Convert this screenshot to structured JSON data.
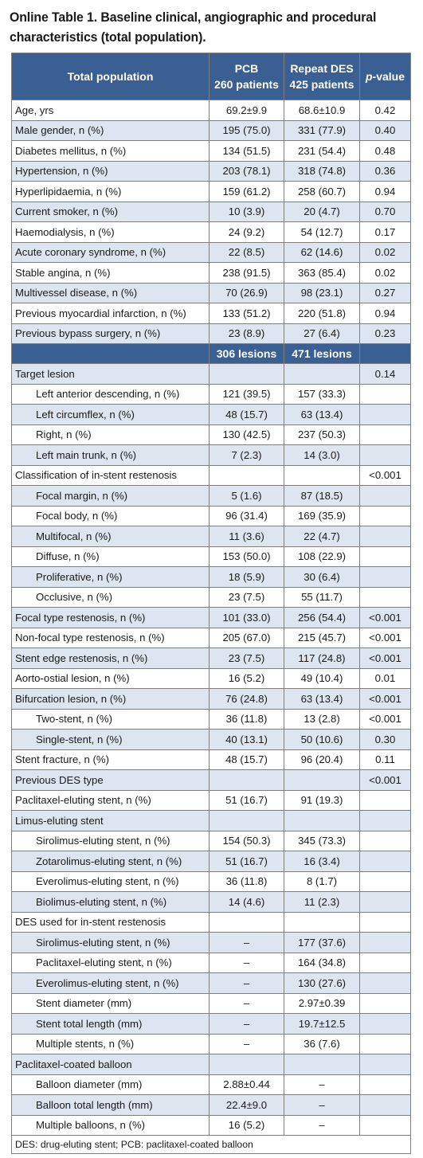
{
  "title": "Online Table 1. Baseline clinical, angiographic and procedural characteristics (total population).",
  "header": {
    "col1": "Total population",
    "col2_line1": "PCB",
    "col2_line2": "260 patients",
    "col3_line1": "Repeat DES",
    "col3_line2": "425 patients",
    "col4_p": "p",
    "col4_rest": "-value"
  },
  "subheader": {
    "col2": "306 lesions",
    "col3": "471 lesions"
  },
  "patient_rows": [
    {
      "label": "Age, yrs",
      "pcb": "69.2±9.9",
      "des": "68.6±10.9",
      "p": "0.42",
      "indent": false,
      "shade": false
    },
    {
      "label": "Male gender, n (%)",
      "pcb": "195 (75.0)",
      "des": "331 (77.9)",
      "p": "0.40",
      "indent": false,
      "shade": true
    },
    {
      "label": "Diabetes mellitus, n (%)",
      "pcb": "134 (51.5)",
      "des": "231 (54.4)",
      "p": "0.48",
      "indent": false,
      "shade": false
    },
    {
      "label": "Hypertension, n (%)",
      "pcb": "203 (78.1)",
      "des": "318 (74.8)",
      "p": "0.36",
      "indent": false,
      "shade": true
    },
    {
      "label": "Hyperlipidaemia, n (%)",
      "pcb": "159 (61.2)",
      "des": "258 (60.7)",
      "p": "0.94",
      "indent": false,
      "shade": false
    },
    {
      "label": "Current smoker, n (%)",
      "pcb": "10 (3.9)",
      "des": "20 (4.7)",
      "p": "0.70",
      "indent": false,
      "shade": true
    },
    {
      "label": "Haemodialysis, n (%)",
      "pcb": "24 (9.2)",
      "des": "54 (12.7)",
      "p": "0.17",
      "indent": false,
      "shade": false
    },
    {
      "label": "Acute coronary syndrome, n (%)",
      "pcb": "22 (8.5)",
      "des": "62 (14.6)",
      "p": "0.02",
      "indent": false,
      "shade": true
    },
    {
      "label": "Stable angina, n (%)",
      "pcb": "238 (91.5)",
      "des": "363 (85.4)",
      "p": "0.02",
      "indent": false,
      "shade": false
    },
    {
      "label": "Multivessel disease, n (%)",
      "pcb": "70 (26.9)",
      "des": "98 (23.1)",
      "p": "0.27",
      "indent": false,
      "shade": true
    },
    {
      "label": "Previous myocardial infarction, n (%)",
      "pcb": "133 (51.2)",
      "des": "220 (51.8)",
      "p": "0.94",
      "indent": false,
      "shade": false
    },
    {
      "label": "Previous bypass surgery, n (%)",
      "pcb": "23 (8.9)",
      "des": "27 (6.4)",
      "p": "0.23",
      "indent": false,
      "shade": true
    }
  ],
  "lesion_rows": [
    {
      "label": "Target lesion",
      "pcb": "",
      "des": "",
      "p": "0.14",
      "indent": false,
      "shade": true
    },
    {
      "label": "Left anterior descending, n (%)",
      "pcb": "121 (39.5)",
      "des": "157 (33.3)",
      "p": "",
      "indent": true,
      "shade": false
    },
    {
      "label": "Left circumflex, n (%)",
      "pcb": "48 (15.7)",
      "des": "63 (13.4)",
      "p": "",
      "indent": true,
      "shade": true
    },
    {
      "label": "Right, n (%)",
      "pcb": "130 (42.5)",
      "des": "237 (50.3)",
      "p": "",
      "indent": true,
      "shade": false
    },
    {
      "label": "Left main trunk, n (%)",
      "pcb": "7 (2.3)",
      "des": "14 (3.0)",
      "p": "",
      "indent": true,
      "shade": true
    },
    {
      "label": "Classification of in-stent restenosis",
      "pcb": "",
      "des": "",
      "p": "<0.001",
      "indent": false,
      "shade": false
    },
    {
      "label": "Focal margin, n (%)",
      "pcb": "5 (1.6)",
      "des": "87 (18.5)",
      "p": "",
      "indent": true,
      "shade": true
    },
    {
      "label": "Focal body, n (%)",
      "pcb": "96 (31.4)",
      "des": "169 (35.9)",
      "p": "",
      "indent": true,
      "shade": false
    },
    {
      "label": "Multifocal, n (%)",
      "pcb": "11 (3.6)",
      "des": "22 (4.7)",
      "p": "",
      "indent": true,
      "shade": true
    },
    {
      "label": "Diffuse, n (%)",
      "pcb": "153 (50.0)",
      "des": "108 (22.9)",
      "p": "",
      "indent": true,
      "shade": false
    },
    {
      "label": "Proliferative, n (%)",
      "pcb": "18 (5.9)",
      "des": "30 (6.4)",
      "p": "",
      "indent": true,
      "shade": true
    },
    {
      "label": "Occlusive, n (%)",
      "pcb": "23 (7.5)",
      "des": "55 (11.7)",
      "p": "",
      "indent": true,
      "shade": false
    },
    {
      "label": "Focal type restenosis, n (%)",
      "pcb": "101 (33.0)",
      "des": "256 (54.4)",
      "p": "<0.001",
      "indent": false,
      "shade": true
    },
    {
      "label": "Non-focal type restenosis, n (%)",
      "pcb": "205 (67.0)",
      "des": "215 (45.7)",
      "p": "<0.001",
      "indent": false,
      "shade": false
    },
    {
      "label": "Stent edge restenosis, n (%)",
      "pcb": "23 (7.5)",
      "des": "117 (24.8)",
      "p": "<0.001",
      "indent": false,
      "shade": true
    },
    {
      "label": "Aorto-ostial lesion, n (%)",
      "pcb": "16 (5.2)",
      "des": "49 (10.4)",
      "p": "0.01",
      "indent": false,
      "shade": false
    },
    {
      "label": "Bifurcation lesion, n (%)",
      "pcb": "76 (24.8)",
      "des": "63 (13.4)",
      "p": "<0.001",
      "indent": false,
      "shade": true
    },
    {
      "label": "Two-stent, n (%)",
      "pcb": "36 (11.8)",
      "des": "13 (2.8)",
      "p": "<0.001",
      "indent": true,
      "shade": false
    },
    {
      "label": "Single-stent, n (%)",
      "pcb": "40 (13.1)",
      "des": "50 (10.6)",
      "p": "0.30",
      "indent": true,
      "shade": true
    },
    {
      "label": "Stent fracture, n (%)",
      "pcb": "48 (15.7)",
      "des": "96 (20.4)",
      "p": "0.11",
      "indent": false,
      "shade": false
    },
    {
      "label": "Previous DES type",
      "pcb": "",
      "des": "",
      "p": "<0.001",
      "indent": false,
      "shade": true
    },
    {
      "label": "Paclitaxel-eluting stent, n (%)",
      "pcb": "51 (16.7)",
      "des": "91 (19.3)",
      "p": "",
      "indent": false,
      "shade": false
    },
    {
      "label": "Limus-eluting stent",
      "pcb": "",
      "des": "",
      "p": "",
      "indent": false,
      "shade": true
    },
    {
      "label": "Sirolimus-eluting stent, n (%)",
      "pcb": "154 (50.3)",
      "des": "345 (73.3)",
      "p": "",
      "indent": true,
      "shade": false
    },
    {
      "label": "Zotarolimus-eluting stent, n (%)",
      "pcb": "51 (16.7)",
      "des": "16 (3.4)",
      "p": "",
      "indent": true,
      "shade": true
    },
    {
      "label": "Everolimus-eluting stent, n (%)",
      "pcb": "36 (11.8)",
      "des": "8 (1.7)",
      "p": "",
      "indent": true,
      "shade": false
    },
    {
      "label": "Biolimus-eluting stent, n (%)",
      "pcb": "14 (4.6)",
      "des": "11 (2.3)",
      "p": "",
      "indent": true,
      "shade": true
    },
    {
      "label": "DES used for in-stent restenosis",
      "pcb": "",
      "des": "",
      "p": "",
      "indent": false,
      "shade": false
    },
    {
      "label": "Sirolimus-eluting stent, n (%)",
      "pcb": "–",
      "des": "177 (37.6)",
      "p": "",
      "indent": true,
      "shade": true
    },
    {
      "label": "Paclitaxel-eluting stent, n (%)",
      "pcb": "–",
      "des": "164 (34.8)",
      "p": "",
      "indent": true,
      "shade": false
    },
    {
      "label": "Everolimus-eluting stent, n (%)",
      "pcb": "–",
      "des": "130 (27.6)",
      "p": "",
      "indent": true,
      "shade": true
    },
    {
      "label": "Stent diameter (mm)",
      "pcb": "–",
      "des": "2.97±0.39",
      "p": "",
      "indent": true,
      "shade": false
    },
    {
      "label": "Stent total length (mm)",
      "pcb": "–",
      "des": "19.7±12.5",
      "p": "",
      "indent": true,
      "shade": true
    },
    {
      "label": "Multiple stents, n (%)",
      "pcb": "–",
      "des": "36 (7.6)",
      "p": "",
      "indent": true,
      "shade": false
    },
    {
      "label": "Paclitaxel-coated balloon",
      "pcb": "",
      "des": "",
      "p": "",
      "indent": false,
      "shade": true
    },
    {
      "label": "Balloon diameter (mm)",
      "pcb": "2.88±0.44",
      "des": "–",
      "p": "",
      "indent": true,
      "shade": false
    },
    {
      "label": "Balloon total length (mm)",
      "pcb": "22.4±9.0",
      "des": "–",
      "p": "",
      "indent": true,
      "shade": true
    },
    {
      "label": "Multiple balloons, n (%)",
      "pcb": "16 (5.2)",
      "des": "–",
      "p": "",
      "indent": true,
      "shade": false
    }
  ],
  "footnote": "DES: drug-eluting stent; PCB: paclitaxel-coated balloon",
  "colors": {
    "header_bg": "#3a5f93",
    "header_text": "#ffffff",
    "shade_row": "#dde5f0",
    "border": "#7f7f7f"
  }
}
